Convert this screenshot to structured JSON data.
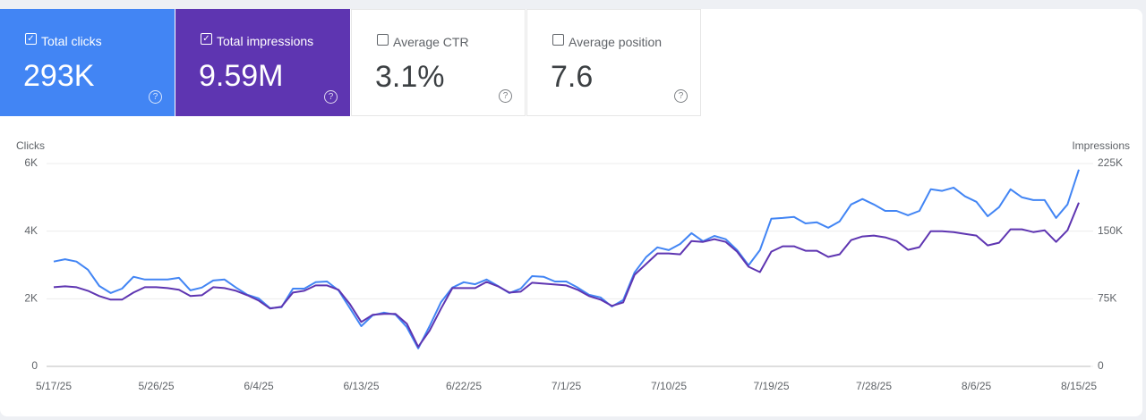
{
  "cards": [
    {
      "label": "Total clicks",
      "value": "293K",
      "checked": true,
      "color": "#4285f4"
    },
    {
      "label": "Total impressions",
      "value": "9.59M",
      "checked": true,
      "color": "#5e35b1"
    },
    {
      "label": "Average CTR",
      "value": "3.1%",
      "checked": false,
      "color": "#ffffff"
    },
    {
      "label": "Average position",
      "value": "7.6",
      "checked": false,
      "color": "#ffffff"
    }
  ],
  "chart_data": {
    "type": "line",
    "ylabel": "Clicks",
    "y2label": "Impressions",
    "categories": [
      "5/17/25",
      null,
      null,
      null,
      null,
      null,
      null,
      null,
      null,
      "5/26/25",
      null,
      null,
      null,
      null,
      null,
      null,
      null,
      null,
      "6/4/25",
      null,
      null,
      null,
      null,
      null,
      null,
      null,
      null,
      "6/13/25",
      null,
      null,
      null,
      null,
      null,
      null,
      null,
      null,
      "6/22/25",
      null,
      null,
      null,
      null,
      null,
      null,
      null,
      null,
      "7/1/25",
      null,
      null,
      null,
      null,
      null,
      null,
      null,
      null,
      "7/10/25",
      null,
      null,
      null,
      null,
      null,
      null,
      null,
      null,
      "7/19/25",
      null,
      null,
      null,
      null,
      null,
      null,
      null,
      null,
      "7/28/25",
      null,
      null,
      null,
      null,
      null,
      null,
      null,
      null,
      "8/6/25",
      null,
      null,
      null,
      null,
      null,
      null,
      null,
      null,
      "8/15/25"
    ],
    "series": [
      {
        "color": "#4285f4",
        "axis": "y",
        "values": [
          3100,
          3170,
          3100,
          2860,
          2380,
          2170,
          2300,
          2650,
          2570,
          2570,
          2570,
          2620,
          2250,
          2330,
          2540,
          2570,
          2330,
          2120,
          2010,
          1720,
          1750,
          2300,
          2300,
          2490,
          2510,
          2250,
          1720,
          1190,
          1510,
          1590,
          1530,
          1160,
          530,
          1190,
          1900,
          2330,
          2490,
          2430,
          2570,
          2380,
          2170,
          2300,
          2670,
          2650,
          2510,
          2510,
          2330,
          2120,
          2040,
          1770,
          1960,
          2780,
          3230,
          3520,
          3440,
          3620,
          3940,
          3700,
          3860,
          3760,
          3440,
          2990,
          3440,
          4370,
          4390,
          4420,
          4230,
          4260,
          4100,
          4290,
          4790,
          4950,
          4790,
          4600,
          4600,
          4470,
          4600,
          5240,
          5190,
          5290,
          5030,
          4870,
          4440,
          4710,
          5240,
          5000,
          4920,
          4920,
          4390,
          4790,
          5820
        ]
      },
      {
        "color": "#5e35b1",
        "axis": "y2",
        "values": [
          87800,
          88800,
          87800,
          83900,
          78000,
          74000,
          74000,
          81900,
          87800,
          87800,
          86800,
          84900,
          78000,
          78900,
          87800,
          86800,
          83900,
          78900,
          73000,
          64100,
          66100,
          81900,
          83900,
          89800,
          89800,
          84900,
          69100,
          49300,
          57200,
          58200,
          58200,
          47400,
          21700,
          39500,
          64100,
          86800,
          86800,
          86800,
          93700,
          88800,
          81900,
          82900,
          92800,
          91800,
          90800,
          89800,
          84900,
          78000,
          74000,
          67100,
          71000,
          101600,
          113500,
          125300,
          125300,
          124300,
          139100,
          138100,
          141100,
          138100,
          127300,
          110500,
          104600,
          127300,
          133200,
          133200,
          128300,
          128300,
          121400,
          124300,
          140100,
          144100,
          145100,
          143100,
          139100,
          129300,
          132200,
          150000,
          150000,
          149000,
          147000,
          145100,
          134200,
          137200,
          152000,
          152000,
          149000,
          151000,
          138100,
          151000,
          181600
        ]
      }
    ],
    "ylim": [
      0,
      6000
    ],
    "yticks": [
      0,
      {
        "value": 2000,
        "label": "2K"
      },
      {
        "value": 4000,
        "label": "4K"
      },
      {
        "value": 6000,
        "label": "6K"
      }
    ],
    "y2lim": [
      0,
      225000
    ],
    "y2ticks": [
      0,
      {
        "value": 75000,
        "label": "75K"
      },
      {
        "value": 150000,
        "label": "150K"
      },
      {
        "value": 225000,
        "label": "225K"
      }
    ],
    "grid": true
  }
}
